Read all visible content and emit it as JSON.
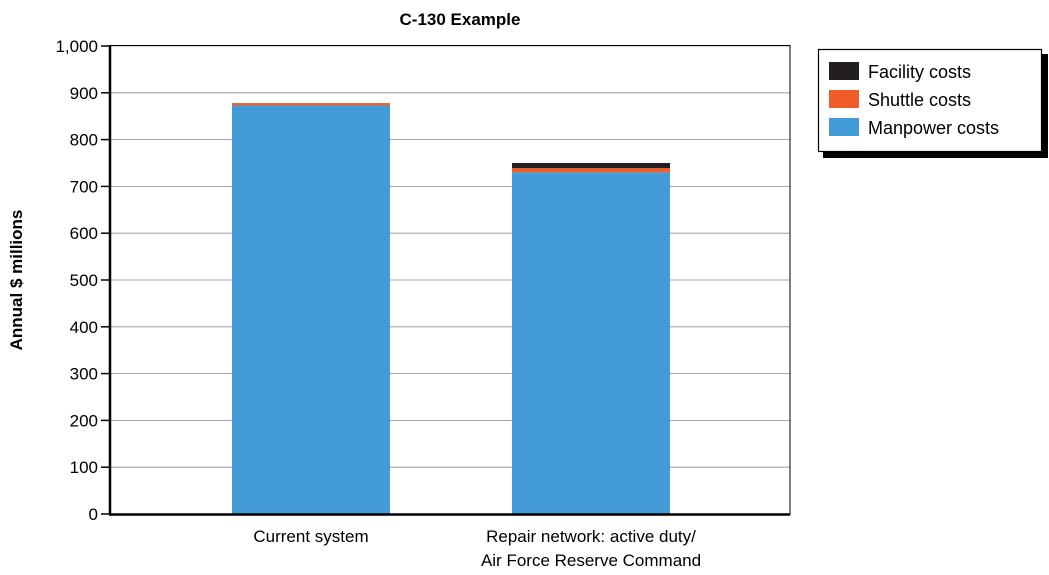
{
  "chart_data": {
    "type": "bar",
    "stacked": true,
    "title": "C-130 Example",
    "xlabel": "",
    "ylabel": "Annual $ millions",
    "ylim": [
      0,
      1000
    ],
    "yticks": [
      0,
      100,
      200,
      300,
      400,
      500,
      600,
      700,
      800,
      900,
      1000
    ],
    "ytick_labels": [
      "0",
      "100",
      "200",
      "300",
      "400",
      "500",
      "600",
      "700",
      "800",
      "900",
      "1,000"
    ],
    "grid": true,
    "legend_position": "right-top",
    "categories": [
      [
        "Current system"
      ],
      [
        "Repair network: active duty/",
        "Air Force Reserve Command"
      ]
    ],
    "series": [
      {
        "name": "Manpower costs",
        "color": "#439cd7",
        "values": [
          873,
          730
        ]
      },
      {
        "name": "Shuttle costs",
        "color": "#f15a29",
        "values": [
          5,
          9
        ]
      },
      {
        "name": "Facility costs",
        "color": "#231f20",
        "values": [
          0,
          11
        ]
      }
    ],
    "legend_order": [
      "Facility costs",
      "Shuttle costs",
      "Manpower costs"
    ]
  }
}
